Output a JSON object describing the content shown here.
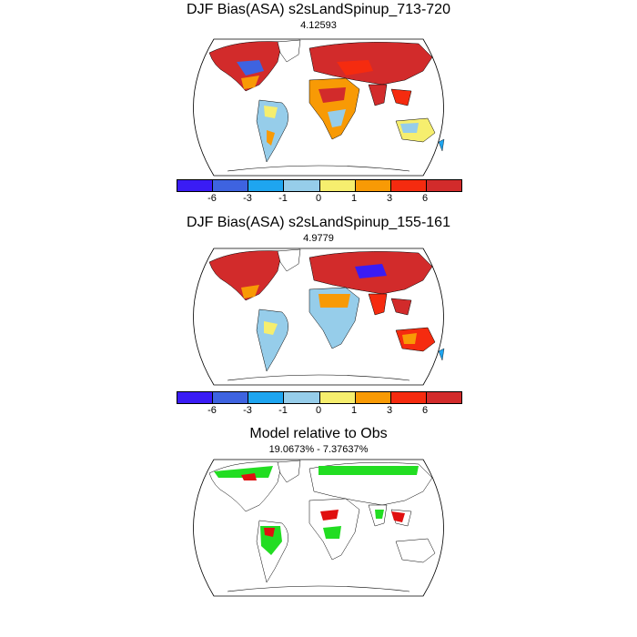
{
  "panels": [
    {
      "title": "DJF Bias(ASA) s2sLandSpinup_713-720",
      "subtitle": "4.12593"
    },
    {
      "title": "DJF Bias(ASA) s2sLandSpinup_155-161",
      "subtitle": "4.9779"
    },
    {
      "title": "Model relative to Obs",
      "subtitle": "19.0673% - 7.37637%"
    }
  ],
  "colorbar": {
    "colors": [
      "#3a1cf5",
      "#3e63e0",
      "#1ea5f0",
      "#96cdea",
      "#f6ee6e",
      "#f89a05",
      "#f52b0f",
      "#d22b2b"
    ],
    "tick_labels": [
      "-6",
      "-3",
      "-1",
      "0",
      "1",
      "3",
      "6"
    ]
  },
  "legend_colors": {
    "better": "#22dd22",
    "worse": "#e01010"
  }
}
